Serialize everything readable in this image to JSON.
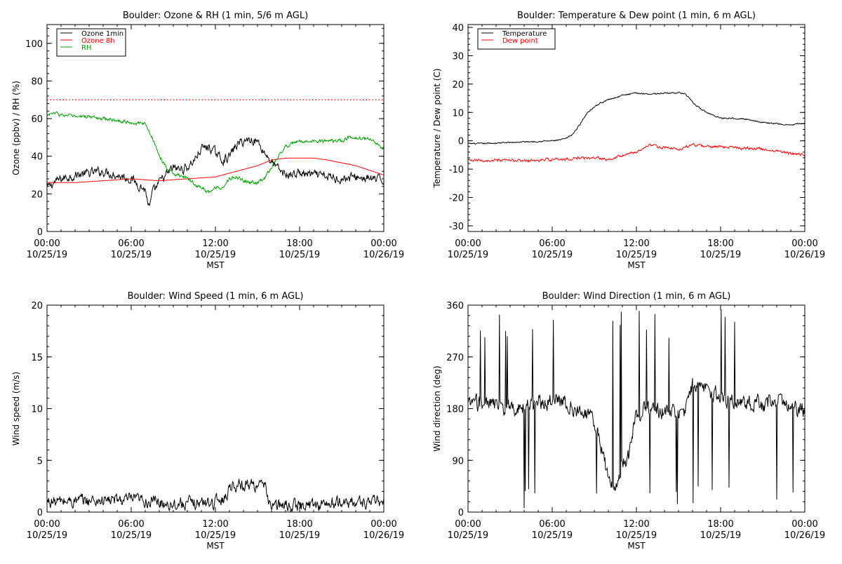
{
  "chart_data": [
    {
      "id": "ozone_rh",
      "type": "line",
      "title": "Boulder: Ozone & RH (1 min, 5/6 m AGL)",
      "xlabel": "MST",
      "ylabel": "Ozone (ppbv) / RH (%)",
      "xlim_hours": [
        0,
        24
      ],
      "ylim": [
        0,
        110
      ],
      "yticks": [
        0,
        20,
        40,
        60,
        80,
        100
      ],
      "xtick_labels": [
        [
          "00:00",
          "10/25/19"
        ],
        [
          "06:00",
          "10/25/19"
        ],
        [
          "12:00",
          "10/25/19"
        ],
        [
          "18:00",
          "10/25/19"
        ],
        [
          "00:00",
          "10/26/19"
        ]
      ],
      "reference_line": {
        "y": 70,
        "style": "dotted",
        "color": "#ff0000"
      },
      "legend": "top-left",
      "series": [
        {
          "name": "Ozone 1min",
          "color": "#000000",
          "noise": 2.0,
          "x": [
            0,
            0.5,
            1,
            2,
            3,
            4,
            5,
            6,
            6.5,
            7,
            7.3,
            7.5,
            8,
            8.5,
            9,
            9.5,
            10,
            10.5,
            11,
            11.5,
            12,
            12.5,
            13,
            13.5,
            14,
            14.5,
            15,
            15.5,
            16,
            16.5,
            17,
            18,
            19,
            20,
            21,
            22,
            23,
            24
          ],
          "y": [
            23,
            26,
            28,
            30,
            31,
            32,
            30,
            28,
            25,
            22,
            12,
            20,
            26,
            30,
            34,
            33,
            34,
            38,
            44,
            45,
            42,
            38,
            40,
            46,
            48,
            49,
            48,
            42,
            37,
            33,
            30,
            31,
            30,
            29,
            28,
            29,
            28,
            27
          ]
        },
        {
          "name": "Ozone 8h",
          "color": "#ff0000",
          "noise": 0,
          "x": [
            0,
            2,
            4,
            6,
            8,
            10,
            12,
            13,
            14,
            15,
            16,
            17,
            18,
            19,
            20,
            22,
            24
          ],
          "y": [
            26,
            26,
            27,
            28,
            27,
            28,
            29,
            31,
            33,
            35,
            38,
            39,
            39,
            39,
            38,
            35,
            30
          ]
        },
        {
          "name": "RH",
          "color": "#00a000",
          "noise": 0.8,
          "x": [
            0,
            0.5,
            1,
            2,
            3,
            4,
            5,
            6,
            7,
            7.5,
            8,
            8.5,
            9,
            10,
            11,
            11.5,
            12,
            12.5,
            13,
            13.5,
            14,
            14.5,
            15,
            15.5,
            16,
            16.5,
            17,
            18,
            19,
            20,
            21,
            21.5,
            22,
            23,
            23.5,
            24
          ],
          "y": [
            62,
            63,
            62,
            61,
            61,
            60,
            59,
            58,
            57,
            50,
            40,
            34,
            31,
            28,
            23,
            21,
            23,
            24,
            28,
            29,
            27,
            26,
            26,
            28,
            34,
            40,
            45,
            48,
            48,
            48,
            48,
            50,
            50,
            49,
            47,
            44
          ]
        }
      ]
    },
    {
      "id": "temp_dew",
      "type": "line",
      "title": "Boulder: Temperature & Dew point (1 min, 6 m AGL)",
      "xlabel": "MST",
      "ylabel": "Temperature / Dew point (C)",
      "xlim_hours": [
        0,
        24
      ],
      "ylim": [
        -32,
        41
      ],
      "yticks": [
        -30,
        -20,
        -10,
        0,
        10,
        20,
        30,
        40
      ],
      "xtick_labels": [
        [
          "00:00",
          "10/25/19"
        ],
        [
          "06:00",
          "10/25/19"
        ],
        [
          "12:00",
          "10/25/19"
        ],
        [
          "18:00",
          "10/25/19"
        ],
        [
          "00:00",
          "10/26/19"
        ]
      ],
      "legend": "top-left",
      "series": [
        {
          "name": "Temperature",
          "color": "#000000",
          "noise": 0.2,
          "x": [
            0,
            0.5,
            1,
            2,
            3,
            4,
            5,
            6,
            6.5,
            7,
            7.5,
            8,
            8.5,
            9,
            9.5,
            10,
            11,
            12,
            13,
            14,
            15,
            15.5,
            16,
            16.5,
            17,
            18,
            19,
            20,
            21,
            22,
            23,
            23.5,
            24
          ],
          "y": [
            -1,
            -1,
            -1,
            -0.8,
            -0.6,
            -0.4,
            -0.2,
            0,
            0.2,
            0.8,
            2.5,
            6,
            10,
            12,
            13.5,
            14.5,
            16,
            16.8,
            16.5,
            16.8,
            17,
            16.5,
            13.5,
            11.5,
            10,
            8,
            8,
            7.5,
            6.5,
            6,
            5.5,
            6,
            6
          ]
        },
        {
          "name": "Dew point",
          "color": "#ff0000",
          "noise": 0.4,
          "x": [
            0,
            1,
            2,
            3,
            4,
            5,
            6,
            7,
            8,
            9,
            10,
            11,
            12,
            12.5,
            13,
            14,
            15,
            16,
            17,
            18,
            19,
            20,
            21,
            22,
            23,
            24
          ],
          "y": [
            -7,
            -7,
            -7,
            -7,
            -7,
            -7,
            -6.5,
            -6.5,
            -6,
            -6,
            -6.5,
            -5,
            -4,
            -2.5,
            -1.5,
            -2.5,
            -3,
            -1.5,
            -2,
            -2,
            -2.5,
            -2.5,
            -3,
            -3.5,
            -4.5,
            -5
          ]
        }
      ]
    },
    {
      "id": "wind_speed",
      "type": "line",
      "title": "Boulder: Wind Speed (1 min, 6 m AGL)",
      "xlabel": "MST",
      "ylabel": "Wind speed (m/s)",
      "xlim_hours": [
        0,
        24
      ],
      "ylim": [
        0,
        20
      ],
      "yticks": [
        0,
        5,
        10,
        15,
        20
      ],
      "xtick_labels": [
        [
          "00:00",
          "10/25/19"
        ],
        [
          "06:00",
          "10/25/19"
        ],
        [
          "12:00",
          "10/25/19"
        ],
        [
          "18:00",
          "10/25/19"
        ],
        [
          "00:00",
          "10/26/19"
        ]
      ],
      "series": [
        {
          "name": "",
          "color": "#000000",
          "noise": 0.5,
          "x": [
            0,
            3,
            6,
            9,
            11,
            12,
            12.8,
            13,
            15,
            15.5,
            16,
            18,
            21,
            24
          ],
          "y": [
            1,
            1.1,
            1.2,
            0.8,
            0.9,
            1.0,
            1.5,
            2.6,
            2.7,
            2.4,
            0.6,
            0.6,
            0.9,
            1.0
          ]
        }
      ]
    },
    {
      "id": "wind_dir",
      "type": "line",
      "title": "Boulder: Wind Direction (1 min, 6 m AGL)",
      "xlabel": "MST",
      "ylabel": "Wind direction (deg)",
      "xlim_hours": [
        0,
        24
      ],
      "ylim": [
        0,
        360
      ],
      "yticks": [
        0,
        90,
        180,
        270,
        360
      ],
      "xtick_labels": [
        [
          "00:00",
          "10/25/19"
        ],
        [
          "06:00",
          "10/25/19"
        ],
        [
          "12:00",
          "10/25/19"
        ],
        [
          "18:00",
          "10/25/19"
        ],
        [
          "00:00",
          "10/26/19"
        ]
      ],
      "series": [
        {
          "name": "",
          "color": "#000000",
          "noise": 12,
          "x": [
            0,
            1,
            2,
            3,
            4,
            5,
            6,
            7,
            8,
            9,
            10,
            10.5,
            11,
            11.5,
            12,
            12.5,
            13,
            14,
            15,
            15.5,
            16,
            17,
            18,
            19,
            20,
            21,
            22,
            23,
            24
          ],
          "y": [
            185,
            190,
            185,
            180,
            185,
            190,
            195,
            190,
            175,
            160,
            60,
            40,
            80,
            100,
            175,
            180,
            175,
            175,
            170,
            175,
            220,
            215,
            200,
            190,
            190,
            185,
            195,
            185,
            175
          ]
        }
      ]
    }
  ]
}
